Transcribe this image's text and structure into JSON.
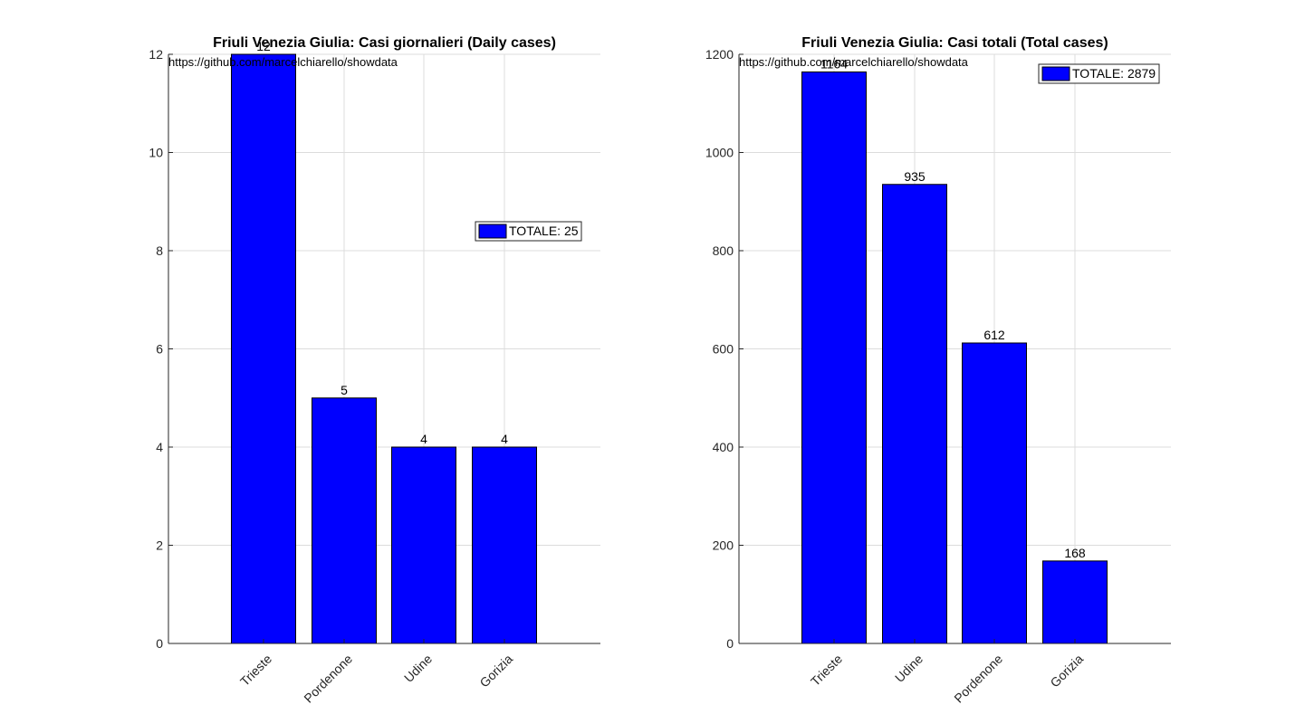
{
  "chart_data": [
    {
      "type": "bar",
      "title": "Friuli Venezia Giulia: Casi giornalieri (Daily cases)",
      "categories": [
        "Trieste",
        "Pordenone",
        "Udine",
        "Gorizia"
      ],
      "values": [
        12,
        5,
        4,
        4
      ],
      "value_labels": [
        "12",
        "5",
        "4",
        "4"
      ],
      "yticks": [
        "0",
        "2",
        "4",
        "6",
        "8",
        "10",
        "12"
      ],
      "ylim": [
        0,
        12
      ],
      "source_text": "https://github.com/marcelchiarello/showdata",
      "legend": "TOTALE: 25",
      "legend_position": "right",
      "bar_color": "#0000ff",
      "grid": true
    },
    {
      "type": "bar",
      "title": "Friuli Venezia Giulia: Casi totali (Total cases)",
      "categories": [
        "Trieste",
        "Udine",
        "Pordenone",
        "Gorizia"
      ],
      "values": [
        1164,
        935,
        612,
        168
      ],
      "value_labels": [
        "1164",
        "935",
        "612",
        "168"
      ],
      "yticks": [
        "0",
        "200",
        "400",
        "600",
        "800",
        "1000",
        "1200"
      ],
      "ylim": [
        0,
        1200
      ],
      "source_text": "https://github.com/marcelchiarello/showdata",
      "legend": "TOTALE: 2879",
      "legend_position": "top-right",
      "bar_color": "#0000ff",
      "grid": true
    }
  ]
}
